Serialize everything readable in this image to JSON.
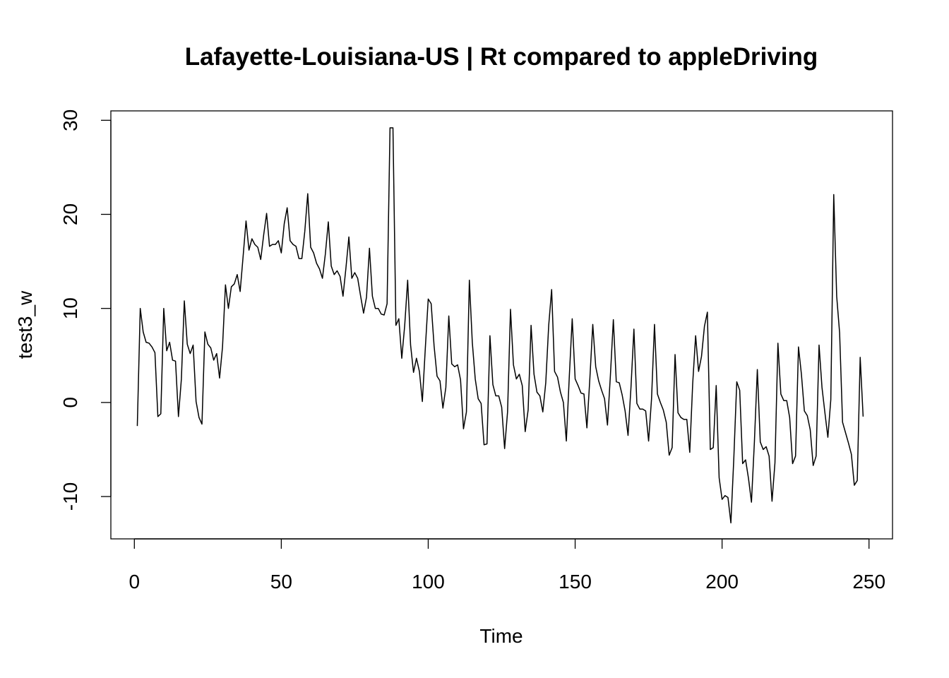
{
  "chart_data": {
    "type": "line",
    "title": "Lafayette-Louisiana-US | Rt compared to appleDriving",
    "xlabel": "Time",
    "ylabel": "test3_w",
    "xlim": [
      -8,
      258
    ],
    "ylim": [
      -14.5,
      31
    ],
    "x_ticks": [
      0,
      50,
      100,
      150,
      200,
      250
    ],
    "y_ticks": [
      -10,
      0,
      10,
      20,
      30
    ],
    "x_tick_labels": [
      "0",
      "50",
      "100",
      "150",
      "200",
      "250"
    ],
    "y_tick_labels": [
      "-10",
      "0",
      "10",
      "20",
      "30"
    ],
    "grid": false,
    "legend": "none",
    "line_color": "#000000",
    "series": [
      {
        "x_start": 1,
        "values": [
          -2.5,
          10.0,
          7.5,
          6.4,
          6.3,
          5.9,
          5.3,
          -1.5,
          -1.2,
          10.0,
          5.5,
          6.4,
          4.5,
          4.4,
          -1.5,
          2.5,
          10.8,
          6.2,
          5.2,
          6.1,
          0.1,
          -1.6,
          -2.3,
          7.5,
          6.2,
          5.8,
          4.5,
          5.2,
          2.6,
          5.9,
          12.5,
          10.0,
          12.3,
          12.6,
          13.6,
          11.8,
          15.5,
          19.3,
          16.2,
          17.4,
          16.8,
          16.5,
          15.2,
          17.8,
          20.1,
          16.6,
          16.8,
          16.8,
          17.2,
          15.9,
          19.0,
          20.7,
          17.2,
          16.8,
          16.6,
          15.3,
          15.3,
          18.2,
          22.2,
          16.5,
          15.9,
          14.8,
          14.2,
          13.2,
          15.8,
          19.2,
          14.5,
          13.6,
          14.0,
          13.4,
          11.3,
          14.3,
          17.6,
          13.2,
          13.8,
          13.2,
          11.3,
          9.5,
          11.2,
          16.4,
          11.3,
          10.0,
          10.0,
          9.4,
          9.3,
          10.5,
          29.2,
          29.2,
          8.2,
          8.9,
          4.7,
          8.2,
          13.0,
          6.1,
          3.2,
          4.7,
          3.3,
          0.1,
          5.7,
          11.0,
          10.5,
          6.0,
          2.8,
          2.3,
          -0.6,
          1.6,
          9.2,
          4.1,
          3.8,
          4.0,
          2.4,
          -2.8,
          -1.0,
          13.0,
          6.4,
          2.5,
          0.4,
          -0.1,
          -4.5,
          -4.4,
          7.1,
          1.9,
          0.7,
          0.7,
          -0.5,
          -4.9,
          -1.0,
          9.9,
          4.0,
          2.5,
          3.0,
          1.8,
          -3.1,
          -0.8,
          8.2,
          3.0,
          1.1,
          0.7,
          -1.0,
          2.1,
          8.2,
          12.0,
          3.3,
          2.7,
          1.1,
          0.0,
          -4.1,
          2.7,
          8.9,
          2.5,
          1.8,
          1.0,
          0.9,
          -2.7,
          2.5,
          8.3,
          3.8,
          2.3,
          1.3,
          0.4,
          -2.4,
          2.9,
          8.8,
          2.2,
          2.1,
          0.8,
          -0.9,
          -3.5,
          1.6,
          7.8,
          -0.1,
          -0.7,
          -0.7,
          -0.9,
          -4.1,
          0.4,
          8.3,
          0.9,
          0.0,
          -0.8,
          -2.1,
          -5.6,
          -4.8,
          5.1,
          -1.1,
          -1.6,
          -1.8,
          -1.8,
          -5.3,
          2.0,
          7.1,
          3.3,
          4.9,
          8.1,
          9.6,
          -5.0,
          -4.8,
          1.8,
          -8.0,
          -10.3,
          -9.9,
          -10.1,
          -12.8,
          -5.9,
          2.2,
          1.3,
          -6.5,
          -6.1,
          -8.1,
          -10.6,
          -4.2,
          3.5,
          -4.2,
          -5.0,
          -4.7,
          -5.7,
          -10.5,
          -6.4,
          6.3,
          0.9,
          0.2,
          0.2,
          -1.6,
          -6.5,
          -5.7,
          5.9,
          3.0,
          -0.9,
          -1.4,
          -2.9,
          -6.7,
          -5.7,
          6.1,
          1.6,
          -1.1,
          -3.7,
          0.3,
          22.1,
          11.3,
          7.4,
          -2.1,
          -3.2,
          -4.3,
          -5.5,
          -8.8,
          -8.3,
          4.8,
          -1.5
        ]
      }
    ]
  }
}
